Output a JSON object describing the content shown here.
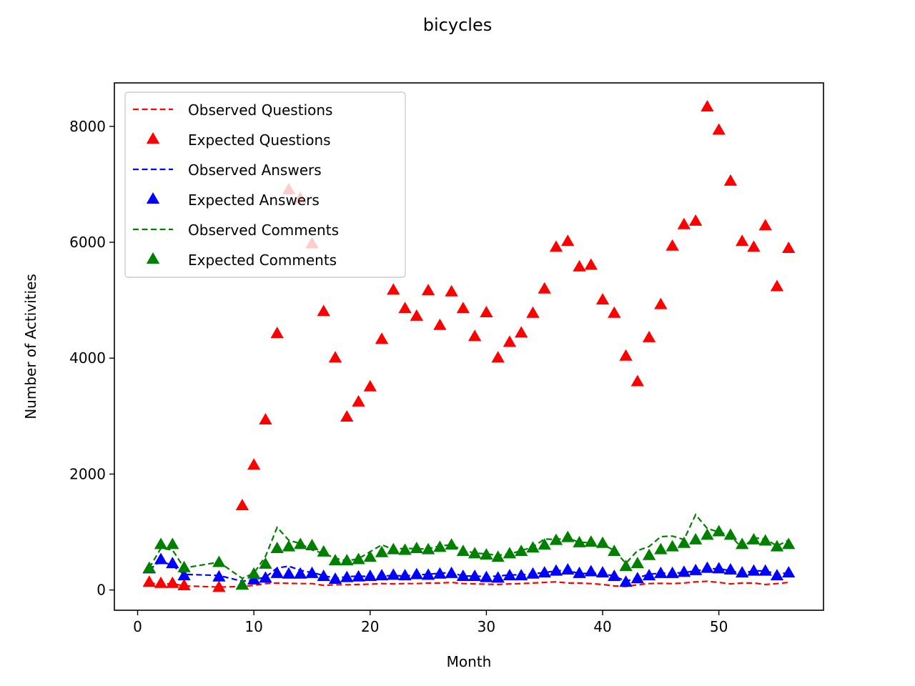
{
  "chart_data": {
    "type": "line",
    "title": "bicycles",
    "xlabel": "Month",
    "ylabel": "Number of Activities",
    "xlim": [
      -2,
      59
    ],
    "ylim": [
      -350,
      8750
    ],
    "xticks": [
      0,
      10,
      20,
      30,
      40,
      50
    ],
    "yticks": [
      0,
      2000,
      4000,
      6000,
      8000
    ],
    "grid": false,
    "legend_position": "top-left",
    "x": [
      1,
      2,
      3,
      4,
      7,
      9,
      10,
      11,
      12,
      13,
      14,
      15,
      16,
      17,
      18,
      19,
      20,
      21,
      22,
      23,
      24,
      25,
      26,
      27,
      28,
      29,
      30,
      31,
      32,
      33,
      34,
      35,
      36,
      37,
      38,
      39,
      40,
      41,
      42,
      43,
      44,
      45,
      46,
      47,
      48,
      49,
      50,
      51,
      52,
      53,
      54,
      55,
      56
    ],
    "series": [
      {
        "name": "Observed Questions",
        "style": "dashed",
        "color": "#ff0000",
        "values": [
          120,
          100,
          110,
          70,
          50,
          60,
          80,
          110,
          120,
          115,
          110,
          110,
          80,
          90,
          90,
          95,
          100,
          110,
          105,
          110,
          110,
          120,
          120,
          130,
          110,
          105,
          100,
          95,
          105,
          110,
          120,
          130,
          140,
          120,
          120,
          110,
          95,
          70,
          60,
          90,
          110,
          115,
          110,
          120,
          140,
          150,
          130,
          105,
          120,
          120,
          95,
          110,
          130
        ]
      },
      {
        "name": "Expected Questions",
        "style": "triangle",
        "color": "#ff0000",
        "values": [
          130,
          110,
          110,
          70,
          40,
          1450,
          2150,
          2930,
          4420,
          6900,
          6750,
          5970,
          4800,
          4000,
          2980,
          3240,
          3500,
          4320,
          5170,
          4850,
          4720,
          5160,
          4560,
          5140,
          4850,
          4370,
          4780,
          4000,
          4270,
          4430,
          4770,
          5190,
          5910,
          6010,
          5570,
          5600,
          5000,
          4770,
          4030,
          3590,
          4350,
          4920,
          5930,
          6300,
          6360,
          8330,
          7930,
          7050,
          6010,
          5910,
          6280,
          5230,
          5890
        ]
      },
      {
        "name": "Observed Answers",
        "style": "dashed",
        "color": "#0000ff",
        "values": [
          350,
          500,
          420,
          270,
          250,
          150,
          180,
          220,
          380,
          410,
          340,
          300,
          250,
          200,
          230,
          240,
          230,
          240,
          250,
          240,
          260,
          270,
          290,
          300,
          240,
          240,
          230,
          240,
          260,
          260,
          280,
          300,
          330,
          340,
          280,
          290,
          280,
          240,
          150,
          210,
          270,
          290,
          290,
          300,
          330,
          360,
          370,
          330,
          290,
          330,
          330,
          270,
          300
        ]
      },
      {
        "name": "Expected Answers",
        "style": "triangle",
        "color": "#0000ff",
        "values": [
          360,
          520,
          450,
          240,
          220,
          80,
          170,
          200,
          280,
          270,
          270,
          280,
          230,
          180,
          210,
          220,
          230,
          240,
          250,
          240,
          260,
          250,
          270,
          280,
          230,
          230,
          210,
          200,
          240,
          240,
          270,
          290,
          320,
          340,
          280,
          310,
          290,
          230,
          130,
          190,
          240,
          280,
          280,
          300,
          330,
          370,
          360,
          340,
          290,
          320,
          320,
          240,
          290
        ]
      },
      {
        "name": "Observed Comments",
        "style": "dashed",
        "color": "#008000",
        "values": [
          380,
          720,
          690,
          380,
          480,
          200,
          290,
          580,
          1080,
          860,
          800,
          690,
          630,
          550,
          500,
          540,
          660,
          780,
          700,
          720,
          710,
          710,
          760,
          780,
          680,
          640,
          620,
          600,
          620,
          680,
          740,
          880,
          870,
          900,
          820,
          820,
          790,
          680,
          460,
          680,
          750,
          920,
          930,
          870,
          1300,
          1060,
          1000,
          940,
          720,
          900,
          880,
          760,
          860
        ]
      },
      {
        "name": "Expected Comments",
        "style": "triangle",
        "color": "#008000",
        "values": [
          370,
          780,
          780,
          380,
          470,
          80,
          270,
          440,
          710,
          740,
          780,
          760,
          650,
          500,
          500,
          520,
          560,
          640,
          690,
          680,
          710,
          690,
          730,
          770,
          660,
          620,
          600,
          560,
          620,
          660,
          720,
          770,
          850,
          900,
          810,
          820,
          800,
          660,
          400,
          450,
          590,
          690,
          740,
          800,
          860,
          940,
          1000,
          940,
          780,
          860,
          840,
          740,
          780
        ]
      }
    ]
  }
}
